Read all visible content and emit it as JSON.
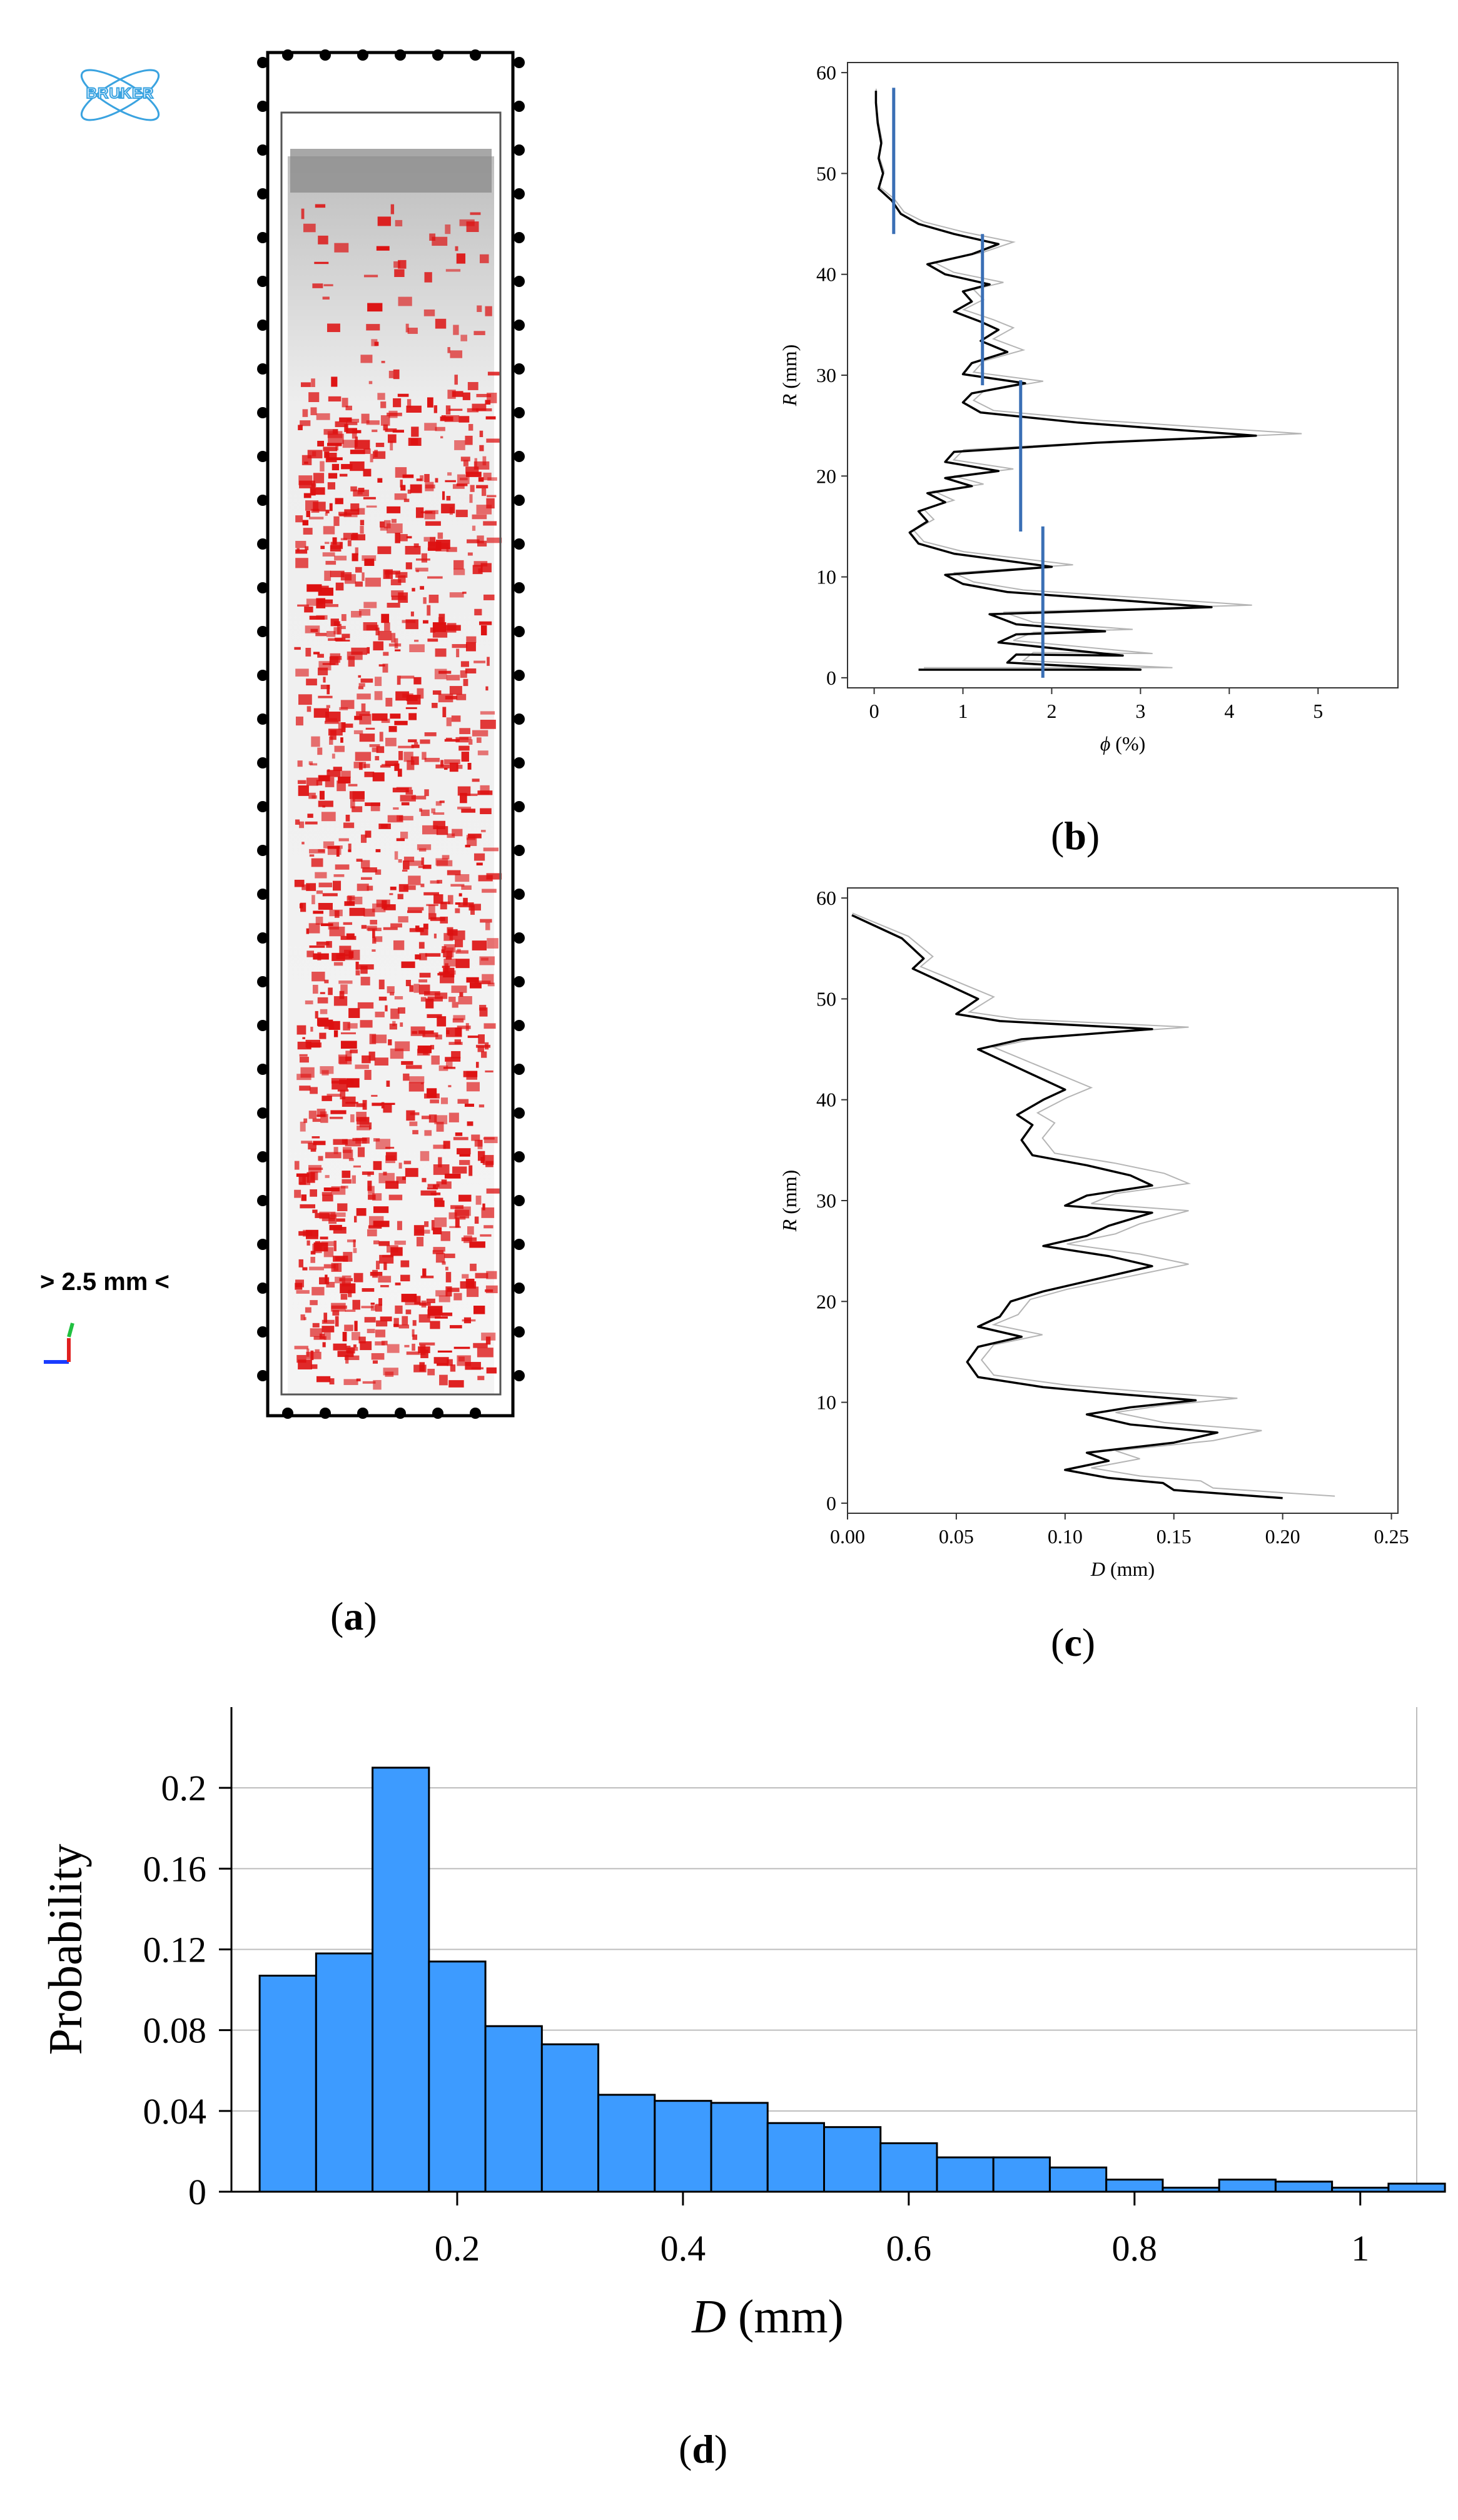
{
  "panels": {
    "a": {
      "label_open": "(",
      "letter": "a",
      "label_close": ")",
      "logo_text": "BRUKER",
      "scale_text": "> 2.5 mm <"
    },
    "b": {
      "label_open": "(",
      "letter": "b",
      "label_close": ")"
    },
    "c": {
      "label_open": "(",
      "letter": "c",
      "label_close": ")"
    },
    "d": {
      "label_open": "(",
      "letter": "d",
      "label_close": ")"
    }
  },
  "colors": {
    "voids": "#dd1010",
    "bars": "#3d9bff",
    "tick_lines": "#3a6fb5",
    "profile": "#000000"
  },
  "chart_data": [
    {
      "id": "b",
      "type": "line",
      "xlabel_symbol": "ϕ",
      "xlabel_unit": " (%)",
      "ylabel_symbol": "R",
      "ylabel_unit": " (mm)",
      "xlim": [
        -0.3,
        5.9
      ],
      "ylim": [
        -1,
        61
      ],
      "x_ticks": [
        0,
        1,
        2,
        3,
        4,
        5
      ],
      "y_ticks": [
        0,
        10,
        20,
        30,
        40,
        50,
        60
      ],
      "grid": false,
      "series": [
        {
          "points": [
            [
              0.5,
              0.8
            ],
            [
              3.0,
              0.8
            ],
            [
              1.5,
              1.5
            ],
            [
              1.6,
              2.3
            ],
            [
              2.8,
              2.2
            ],
            [
              1.4,
              3.5
            ],
            [
              1.6,
              4.3
            ],
            [
              2.6,
              4.6
            ],
            [
              1.6,
              5.3
            ],
            [
              1.3,
              6.3
            ],
            [
              3.8,
              7.0
            ],
            [
              2.9,
              7.6
            ],
            [
              1.5,
              8.5
            ],
            [
              1.0,
              9.3
            ],
            [
              0.8,
              10.2
            ],
            [
              2.0,
              11.0
            ],
            [
              0.9,
              12.3
            ],
            [
              0.5,
              13.3
            ],
            [
              0.4,
              14.4
            ],
            [
              0.6,
              15.5
            ],
            [
              0.5,
              16.5
            ],
            [
              0.8,
              17.4
            ],
            [
              0.6,
              18.3
            ],
            [
              1.1,
              19.0
            ],
            [
              0.8,
              19.8
            ],
            [
              1.4,
              20.5
            ],
            [
              0.8,
              21.4
            ],
            [
              0.9,
              22.4
            ],
            [
              2.5,
              23.3
            ],
            [
              4.3,
              24.0
            ],
            [
              2.3,
              25.3
            ],
            [
              1.2,
              26.3
            ],
            [
              1.0,
              27.3
            ],
            [
              1.1,
              28.2
            ],
            [
              1.7,
              29.2
            ],
            [
              1.0,
              30.1
            ],
            [
              1.1,
              31.2
            ],
            [
              1.5,
              32.3
            ],
            [
              1.2,
              33.4
            ],
            [
              1.4,
              34.5
            ],
            [
              1.2,
              35.3
            ],
            [
              0.9,
              36.3
            ],
            [
              1.1,
              37.3
            ],
            [
              1.0,
              38.3
            ],
            [
              1.3,
              39.0
            ],
            [
              0.8,
              40.0
            ],
            [
              0.6,
              41.0
            ],
            [
              1.1,
              42.0
            ],
            [
              1.4,
              43.0
            ],
            [
              0.9,
              44.0
            ],
            [
              0.5,
              45.0
            ],
            [
              0.3,
              46.0
            ],
            [
              0.2,
              47.3
            ],
            [
              0.05,
              48.5
            ],
            [
              0.1,
              50.0
            ],
            [
              0.05,
              51.5
            ],
            [
              0.08,
              53.0
            ],
            [
              0.04,
              55.0
            ],
            [
              0.02,
              57.0
            ],
            [
              0.02,
              58.2
            ]
          ]
        }
      ],
      "avg_segments": [
        {
          "x": 0.22,
          "y": [
            44,
            58.5
          ]
        },
        {
          "x": 1.22,
          "y": [
            29,
            44
          ]
        },
        {
          "x": 1.65,
          "y": [
            14.5,
            29.5
          ]
        },
        {
          "x": 1.9,
          "y": [
            0,
            15
          ]
        }
      ]
    },
    {
      "id": "c",
      "type": "line",
      "xlabel_symbol": "D",
      "xlabel_unit": " (mm)",
      "ylabel_symbol": "R",
      "ylabel_unit": " (mm)",
      "xlim": [
        0,
        0.253
      ],
      "ylim": [
        -1,
        61
      ],
      "x_ticks": [
        "0.00",
        "0.05",
        "0.10",
        "0.15",
        "0.20",
        "0.25"
      ],
      "y_ticks": [
        0,
        10,
        20,
        30,
        40,
        50,
        60
      ],
      "grid": false,
      "series": [
        {
          "points": [
            [
              0.2,
              0.5
            ],
            [
              0.15,
              1.3
            ],
            [
              0.145,
              2.0
            ],
            [
              0.12,
              2.5
            ],
            [
              0.1,
              3.3
            ],
            [
              0.12,
              4.2
            ],
            [
              0.11,
              5.0
            ],
            [
              0.15,
              6.0
            ],
            [
              0.17,
              7.0
            ],
            [
              0.13,
              7.8
            ],
            [
              0.11,
              8.8
            ],
            [
              0.13,
              9.5
            ],
            [
              0.16,
              10.2
            ],
            [
              0.12,
              10.9
            ],
            [
              0.09,
              11.5
            ],
            [
              0.06,
              12.5
            ],
            [
              0.055,
              14.0
            ],
            [
              0.06,
              15.5
            ],
            [
              0.08,
              16.5
            ],
            [
              0.06,
              17.5
            ],
            [
              0.07,
              18.5
            ],
            [
              0.075,
              20.0
            ],
            [
              0.09,
              21.0
            ],
            [
              0.11,
              22.0
            ],
            [
              0.14,
              23.5
            ],
            [
              0.12,
              24.5
            ],
            [
              0.09,
              25.5
            ],
            [
              0.11,
              26.5
            ],
            [
              0.12,
              27.5
            ],
            [
              0.14,
              28.8
            ],
            [
              0.1,
              29.5
            ],
            [
              0.11,
              30.5
            ],
            [
              0.14,
              31.5
            ],
            [
              0.13,
              32.5
            ],
            [
              0.11,
              33.5
            ],
            [
              0.085,
              34.5
            ],
            [
              0.08,
              36.0
            ],
            [
              0.085,
              37.5
            ],
            [
              0.078,
              38.5
            ],
            [
              0.09,
              40.0
            ],
            [
              0.1,
              41.0
            ],
            [
              0.09,
              42.0
            ],
            [
              0.08,
              43.0
            ],
            [
              0.07,
              44.0
            ],
            [
              0.06,
              45.0
            ],
            [
              0.08,
              46.0
            ],
            [
              0.14,
              47.0
            ],
            [
              0.07,
              47.8
            ],
            [
              0.05,
              48.5
            ],
            [
              0.06,
              50.0
            ],
            [
              0.05,
              51.0
            ],
            [
              0.04,
              52.0
            ],
            [
              0.03,
              53.0
            ],
            [
              0.035,
              54.0
            ],
            [
              0.03,
              55.0
            ],
            [
              0.025,
              56.0
            ],
            [
              0.015,
              57.0
            ],
            [
              0.002,
              58.3
            ]
          ]
        }
      ]
    },
    {
      "id": "d",
      "type": "bar",
      "ylabel": "Probability",
      "xlabel_symbol": "D",
      "xlabel_unit": " (mm)",
      "xlim": [
        0,
        1.05
      ],
      "ylim": [
        0,
        0.24
      ],
      "x_ticks": [
        "0.2",
        "0.4",
        "0.6",
        "0.8",
        "1"
      ],
      "y_ticks": [
        "0",
        "0.04",
        "0.08",
        "0.12",
        "0.16",
        "0.2"
      ],
      "grid": true,
      "bin_width": 0.05,
      "bin_starts": [
        0.025,
        0.075,
        0.125,
        0.175,
        0.225,
        0.275,
        0.325,
        0.375,
        0.425,
        0.475,
        0.525,
        0.575,
        0.625,
        0.675,
        0.725,
        0.775,
        0.825,
        0.875,
        0.925,
        0.975,
        1.025
      ],
      "values": [
        0.107,
        0.118,
        0.21,
        0.114,
        0.082,
        0.073,
        0.048,
        0.045,
        0.044,
        0.034,
        0.032,
        0.024,
        0.017,
        0.017,
        0.012,
        0.006,
        0.002,
        0.006,
        0.005,
        0.002,
        0.004
      ]
    }
  ]
}
